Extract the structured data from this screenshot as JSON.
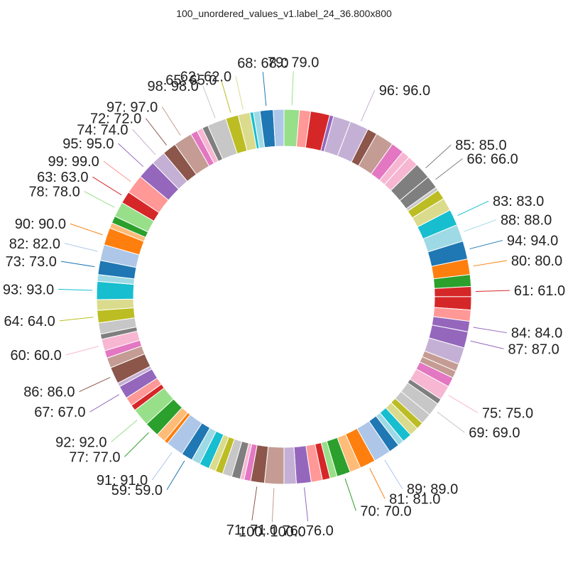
{
  "chart_data": {
    "type": "pie",
    "title": "100_unordered_values_v1.label_24_36.800x800",
    "donut": true,
    "start_angle_deg": 0,
    "direction": "clockwise",
    "values": [
      79,
      57,
      99,
      21,
      90,
      96,
      51,
      95,
      66,
      42,
      55,
      85,
      66,
      18,
      51,
      67,
      83,
      88,
      94,
      80,
      61,
      52,
      68,
      58,
      54,
      84,
      87,
      39,
      37,
      50,
      75,
      28,
      69,
      57,
      37,
      47,
      49,
      32,
      55,
      89,
      81,
      57,
      70,
      37,
      40,
      58,
      76,
      63,
      100,
      71,
      34,
      20,
      45,
      49,
      38,
      36,
      52,
      45,
      59,
      91,
      20,
      48,
      77,
      92,
      30,
      46,
      67,
      20,
      86,
      53,
      39,
      60,
      27,
      58,
      64,
      55,
      93,
      35,
      73,
      82,
      90,
      28,
      37,
      78,
      63,
      99,
      95,
      74,
      72,
      97,
      35,
      30,
      31,
      98,
      65,
      62,
      17,
      34,
      68,
      55
    ],
    "colors": [
      "#98df8a",
      "#ff9896",
      "#d62728",
      "#9467bd",
      "#c5b0d5",
      "#c5b0d5",
      "#8c564b",
      "#c49c94",
      "#e377c2",
      "#f7b6d2",
      "#f7b6d2",
      "#7f7f7f",
      "#7f7f7f",
      "#c7c7c7",
      "#bcbd22",
      "#dbdb8d",
      "#17becf",
      "#9edae5",
      "#1f77b4",
      "#ff7f0e",
      "#2ca02c",
      "#d62728",
      "#d62728",
      "#ff9896",
      "#9467bd",
      "#9467bd",
      "#c5b0d5",
      "#c49c94",
      "#c49c94",
      "#e377c2",
      "#f7b6d2",
      "#7f7f7f",
      "#c7c7c7",
      "#c7c7c7",
      "#bcbd22",
      "#dbdb8d",
      "#17becf",
      "#9edae5",
      "#1f77b4",
      "#aec7e8",
      "#ff7f0e",
      "#ffbb78",
      "#2ca02c",
      "#98df8a",
      "#d62728",
      "#ff9896",
      "#9467bd",
      "#c5b0d5",
      "#c49c94",
      "#8c564b",
      "#e377c2",
      "#f7b6d2",
      "#7f7f7f",
      "#c7c7c7",
      "#bcbd22",
      "#dbdb8d",
      "#17becf",
      "#9edae5",
      "#1f77b4",
      "#aec7e8",
      "#ff7f0e",
      "#ffbb78",
      "#2ca02c",
      "#98df8a",
      "#d62728",
      "#ff9896",
      "#9467bd",
      "#c5b0d5",
      "#8c564b",
      "#c49c94",
      "#e377c2",
      "#f7b6d2",
      "#7f7f7f",
      "#c7c7c7",
      "#bcbd22",
      "#dbdb8d",
      "#17becf",
      "#9edae5",
      "#1f77b4",
      "#aec7e8",
      "#ff7f0e",
      "#ffbb78",
      "#2ca02c",
      "#98df8a",
      "#d62728",
      "#ff9896",
      "#9467bd",
      "#c5b0d5",
      "#8c564b",
      "#c49c94",
      "#e377c2",
      "#f7b6d2",
      "#7f7f7f",
      "#c7c7c7",
      "#bcbd22",
      "#dbdb8d",
      "#17becf",
      "#9edae5",
      "#1f77b4",
      "#aec7e8"
    ],
    "labels": [
      "79: 79.0",
      "",
      "",
      "",
      "",
      "96: 96.0",
      "",
      "",
      "",
      "",
      "",
      "85: 85.0",
      "66: 66.0",
      "",
      "",
      "",
      "83: 83.0",
      "88: 88.0",
      "94: 94.0",
      "80: 80.0",
      "",
      "61: 61.0",
      "",
      "",
      "84: 84.0",
      "87: 87.0",
      "",
      "",
      "",
      "",
      "75: 75.0",
      "",
      "69: 69.0",
      "",
      "",
      "",
      "",
      "",
      "",
      "89: 89.0",
      "81: 81.0",
      "",
      "70: 70.0",
      "",
      "",
      "",
      "76: 76.0",
      "",
      "100: 100.0",
      "71: 71.0",
      "",
      "",
      "",
      "",
      "",
      "",
      "",
      "",
      "59: 59.0",
      "91: 91.0",
      "",
      "",
      "77: 77.0",
      "92: 92.0",
      "",
      "",
      "67: 67.0",
      "",
      "86: 86.0",
      "",
      "",
      "60: 60.0",
      "",
      "",
      "64: 64.0",
      "",
      "93: 93.0",
      "",
      "73: 73.0",
      "82: 82.0",
      "90: 90.0",
      "",
      "",
      "78: 78.0",
      "63: 63.0",
      "99: 99.0",
      "95: 95.0",
      "74: 74.0",
      "72: 72.0",
      "97: 97.0",
      "",
      "",
      "",
      "98: 98.0",
      "65: 65.0",
      "62: 62.0",
      "",
      "",
      "68: 68.0",
      ""
    ]
  }
}
